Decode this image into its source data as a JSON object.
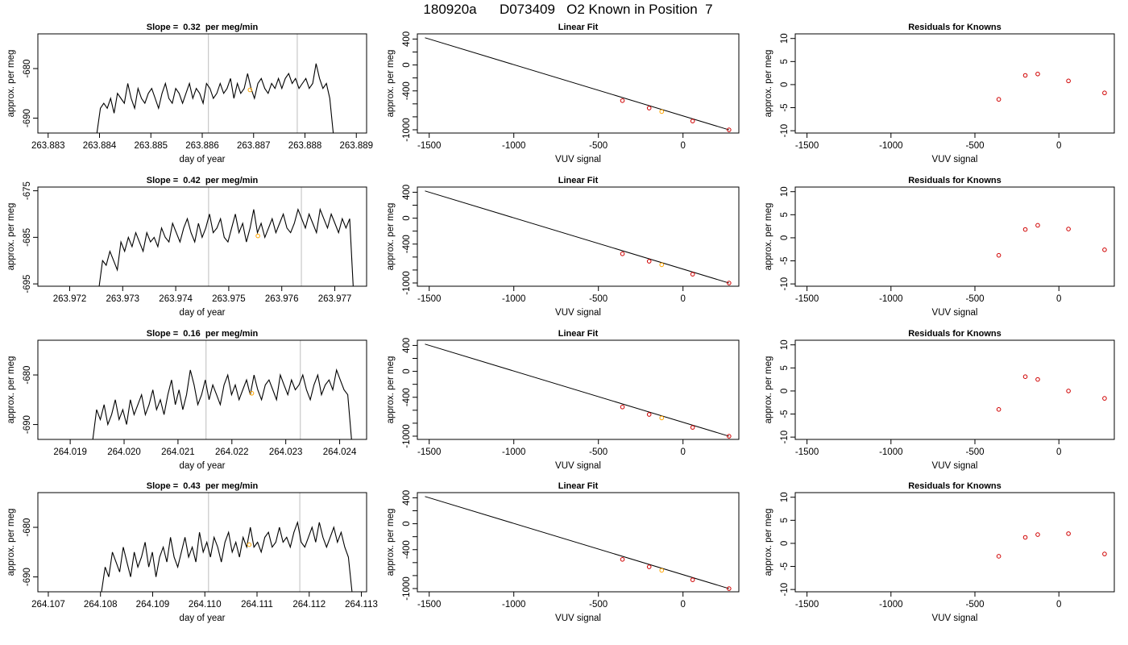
{
  "page_title": "180920a      D073409   O2 Known in Position  7",
  "chart_data": [
    {
      "type": "line",
      "panel": "timeseries",
      "row": 0,
      "title": "Slope =  0.32  per meg/min",
      "xlabel": "day of year",
      "ylabel": "approx. per meg",
      "xlim": [
        263.8828,
        263.8892
      ],
      "ylim": [
        -693,
        -673
      ],
      "xticks": [
        263.883,
        263.884,
        263.885,
        263.886,
        263.887,
        263.888,
        263.889
      ],
      "xtick_labels": [
        "263.883",
        "263.884",
        "263.885",
        "263.886",
        "263.887",
        "263.888",
        "263.889"
      ],
      "yticks": [
        -690,
        -680
      ],
      "ytick_labels": [
        "-690",
        "-680"
      ],
      "vlines": [
        263.88612,
        263.88785
      ],
      "series": [
        {
          "x_start": 263.88395,
          "x_end": 263.88855,
          "values": [
            -693,
            -688,
            -687,
            -688,
            -686,
            -689,
            -685,
            -686,
            -687,
            -683,
            -686,
            -688,
            -684,
            -686,
            -687,
            -685,
            -684,
            -686,
            -688,
            -685,
            -683,
            -686,
            -687,
            -684,
            -685,
            -687,
            -685,
            -683,
            -686,
            -684,
            -685,
            -687,
            -683,
            -684,
            -686,
            -685,
            -683,
            -685,
            -684,
            -682,
            -686,
            -683,
            -685,
            -684,
            -681,
            -684,
            -686,
            -683,
            -682,
            -684,
            -685,
            -683,
            -684,
            -682,
            -684,
            -682,
            -681,
            -683,
            -682,
            -684,
            -683,
            -682,
            -684,
            -683,
            -679,
            -682,
            -684,
            -683,
            -686,
            -693
          ]
        }
      ],
      "marker": {
        "x": 263.88693,
        "y": -684.3,
        "color": "#ffa500"
      }
    },
    {
      "type": "line",
      "panel": "fit",
      "row": 0,
      "title": "Linear Fit",
      "xlabel": "VUV signal",
      "ylabel": "approx. per meg",
      "xlim": [
        -1570,
        330
      ],
      "ylim": [
        -1050,
        480
      ],
      "xticks": [
        -1500,
        -1000,
        -500,
        0
      ],
      "xtick_labels": [
        "-1500",
        "-1000",
        "-500",
        "0"
      ],
      "yticks": [
        -1000,
        -800,
        -600,
        -400,
        -200,
        0,
        200,
        400
      ],
      "ytick_labels": [
        "-1000",
        "",
        "",
        "-400",
        "",
        "0",
        "",
        "400"
      ],
      "line": [
        [
          -1525,
          420
        ],
        [
          272,
          -1001
        ]
      ],
      "points": [
        {
          "x": -358,
          "y": -550
        },
        {
          "x": -200,
          "y": -665
        },
        {
          "x": -126,
          "y": -719,
          "color": "#ffa500"
        },
        {
          "x": 57,
          "y": -865
        },
        {
          "x": 272,
          "y": -1001
        }
      ]
    },
    {
      "type": "scatter",
      "panel": "residuals",
      "row": 0,
      "title": "Residuals for Knowns",
      "xlabel": "VUV signal",
      "ylabel": "approx. per meg",
      "xlim": [
        -1570,
        330
      ],
      "ylim": [
        -10.5,
        11
      ],
      "xticks": [
        -1500,
        -1000,
        -500,
        0
      ],
      "xtick_labels": [
        "-1500",
        "-1000",
        "-500",
        "0"
      ],
      "yticks": [
        -10,
        -5,
        0,
        5,
        10
      ],
      "ytick_labels": [
        "-10",
        "-5",
        "0",
        "5",
        "10"
      ],
      "points": [
        {
          "x": -358,
          "y": -3.2
        },
        {
          "x": -200,
          "y": 2.0
        },
        {
          "x": -126,
          "y": 2.3
        },
        {
          "x": 57,
          "y": 0.8
        },
        {
          "x": 272,
          "y": -1.8
        }
      ]
    },
    {
      "type": "line",
      "panel": "timeseries",
      "row": 1,
      "title": "Slope =  0.42  per meg/min",
      "xlabel": "day of year",
      "ylabel": "approx. per meg",
      "xlim": [
        263.9714,
        263.9776
      ],
      "ylim": [
        -695.5,
        -674.2
      ],
      "xticks": [
        263.972,
        263.973,
        263.974,
        263.975,
        263.976,
        263.977
      ],
      "xtick_labels": [
        "263.972",
        "263.973",
        "263.974",
        "263.975",
        "263.976",
        "263.977"
      ],
      "yticks": [
        -695,
        -685,
        -675
      ],
      "ytick_labels": [
        "-695",
        "-685",
        "-675"
      ],
      "vlines": [
        263.97462,
        263.97637
      ],
      "series": [
        {
          "x_start": 263.97255,
          "x_end": 263.97735,
          "values": [
            -696,
            -690,
            -691,
            -688,
            -690,
            -692,
            -686,
            -688,
            -685,
            -687,
            -684,
            -686,
            -688,
            -684,
            -686,
            -685,
            -687,
            -683,
            -685,
            -686,
            -682,
            -684,
            -686,
            -683,
            -681,
            -684,
            -686,
            -682,
            -685,
            -683,
            -680,
            -684,
            -683,
            -681,
            -685,
            -686,
            -683,
            -680,
            -684,
            -682,
            -686,
            -683,
            -679,
            -684,
            -682,
            -685,
            -683,
            -681,
            -684,
            -682,
            -680,
            -683,
            -684,
            -682,
            -679,
            -681,
            -683,
            -680,
            -682,
            -684,
            -679,
            -681,
            -683,
            -680,
            -682,
            -684,
            -681,
            -683,
            -681,
            -696
          ]
        }
      ],
      "marker": {
        "x": 263.97555,
        "y": -684.7,
        "color": "#ffa500"
      }
    },
    {
      "type": "line",
      "panel": "fit",
      "row": 1,
      "title": "Linear Fit",
      "xlabel": "VUV signal",
      "ylabel": "approx. per meg",
      "xlim": [
        -1570,
        330
      ],
      "ylim": [
        -1050,
        480
      ],
      "xticks": [
        -1500,
        -1000,
        -500,
        0
      ],
      "xtick_labels": [
        "-1500",
        "-1000",
        "-500",
        "0"
      ],
      "yticks": [
        -1000,
        -800,
        -600,
        -400,
        -200,
        0,
        200,
        400
      ],
      "ytick_labels": [
        "-1000",
        "",
        "",
        "-400",
        "",
        "0",
        "",
        "400"
      ],
      "line": [
        [
          -1525,
          420
        ],
        [
          272,
          -1001
        ]
      ],
      "points": [
        {
          "x": -358,
          "y": -550
        },
        {
          "x": -200,
          "y": -665
        },
        {
          "x": -126,
          "y": -719,
          "color": "#ffa500"
        },
        {
          "x": 57,
          "y": -865
        },
        {
          "x": 272,
          "y": -1001
        }
      ]
    },
    {
      "type": "scatter",
      "panel": "residuals",
      "row": 1,
      "title": "Residuals for Knowns",
      "xlabel": "VUV signal",
      "ylabel": "approx. per meg",
      "xlim": [
        -1570,
        330
      ],
      "ylim": [
        -10.5,
        11
      ],
      "xticks": [
        -1500,
        -1000,
        -500,
        0
      ],
      "xtick_labels": [
        "-1500",
        "-1000",
        "-500",
        "0"
      ],
      "yticks": [
        -10,
        -5,
        0,
        5,
        10
      ],
      "ytick_labels": [
        "-10",
        "-5",
        "0",
        "5",
        "10"
      ],
      "points": [
        {
          "x": -358,
          "y": -3.8
        },
        {
          "x": -200,
          "y": 1.8
        },
        {
          "x": -126,
          "y": 2.7
        },
        {
          "x": 57,
          "y": 1.9
        },
        {
          "x": 272,
          "y": -2.6
        }
      ]
    },
    {
      "type": "line",
      "panel": "timeseries",
      "row": 2,
      "title": "Slope =  0.16  per meg/min",
      "xlabel": "day of year",
      "ylabel": "approx. per meg",
      "xlim": [
        264.0184,
        264.0245
      ],
      "ylim": [
        -693,
        -673
      ],
      "xticks": [
        264.019,
        264.02,
        264.021,
        264.022,
        264.023,
        264.024
      ],
      "xtick_labels": [
        "264.019",
        "264.020",
        "264.021",
        "264.022",
        "264.023",
        "264.024"
      ],
      "yticks": [
        -690,
        -680
      ],
      "ytick_labels": [
        "-690",
        "-680"
      ],
      "vlines": [
        264.02152,
        264.02327
      ],
      "series": [
        {
          "x_start": 264.01942,
          "x_end": 264.02422,
          "values": [
            -693,
            -687,
            -689,
            -686,
            -690,
            -688,
            -685,
            -689,
            -687,
            -690,
            -685,
            -688,
            -686,
            -684,
            -688,
            -686,
            -683,
            -687,
            -685,
            -688,
            -684,
            -681,
            -686,
            -683,
            -687,
            -684,
            -679,
            -682,
            -686,
            -684,
            -681,
            -685,
            -682,
            -684,
            -686,
            -682,
            -680,
            -684,
            -682,
            -685,
            -683,
            -681,
            -684,
            -680,
            -683,
            -685,
            -682,
            -681,
            -683,
            -685,
            -680,
            -682,
            -684,
            -681,
            -683,
            -682,
            -680,
            -683,
            -685,
            -682,
            -680,
            -684,
            -682,
            -681,
            -683,
            -679,
            -681,
            -683,
            -684,
            -693
          ]
        }
      ],
      "marker": {
        "x": 264.02237,
        "y": -683.7,
        "color": "#ffa500"
      }
    },
    {
      "type": "line",
      "panel": "fit",
      "row": 2,
      "title": "Linear Fit",
      "xlabel": "VUV signal",
      "ylabel": "approx. per meg",
      "xlim": [
        -1570,
        330
      ],
      "ylim": [
        -1050,
        480
      ],
      "xticks": [
        -1500,
        -1000,
        -500,
        0
      ],
      "xtick_labels": [
        "-1500",
        "-1000",
        "-500",
        "0"
      ],
      "yticks": [
        -1000,
        -800,
        -600,
        -400,
        -200,
        0,
        200,
        400
      ],
      "ytick_labels": [
        "-1000",
        "",
        "",
        "-400",
        "",
        "0",
        "",
        "400"
      ],
      "line": [
        [
          -1525,
          420
        ],
        [
          272,
          -1001
        ]
      ],
      "points": [
        {
          "x": -358,
          "y": -550
        },
        {
          "x": -200,
          "y": -665
        },
        {
          "x": -126,
          "y": -719,
          "color": "#ffa500"
        },
        {
          "x": 57,
          "y": -865
        },
        {
          "x": 272,
          "y": -1001
        }
      ]
    },
    {
      "type": "scatter",
      "panel": "residuals",
      "row": 2,
      "title": "Residuals for Knowns",
      "xlabel": "VUV signal",
      "ylabel": "approx. per meg",
      "xlim": [
        -1570,
        330
      ],
      "ylim": [
        -10.5,
        11
      ],
      "xticks": [
        -1500,
        -1000,
        -500,
        0
      ],
      "xtick_labels": [
        "-1500",
        "-1000",
        "-500",
        "0"
      ],
      "yticks": [
        -10,
        -5,
        0,
        5,
        10
      ],
      "ytick_labels": [
        "-10",
        "-5",
        "0",
        "5",
        "10"
      ],
      "points": [
        {
          "x": -358,
          "y": -4.0
        },
        {
          "x": -200,
          "y": 3.1
        },
        {
          "x": -126,
          "y": 2.5
        },
        {
          "x": 57,
          "y": 0.0
        },
        {
          "x": 272,
          "y": -1.6
        }
      ]
    },
    {
      "type": "line",
      "panel": "timeseries",
      "row": 3,
      "title": "Slope =  0.43  per meg/min",
      "xlabel": "day of year",
      "ylabel": "approx. per meg",
      "xlim": [
        264.1068,
        264.1131
      ],
      "ylim": [
        -693,
        -673
      ],
      "xticks": [
        264.107,
        264.108,
        264.109,
        264.11,
        264.111,
        264.112,
        264.113
      ],
      "xtick_labels": [
        "264.107",
        "264.108",
        "264.109",
        "264.110",
        "264.111",
        "264.112",
        "264.113"
      ],
      "yticks": [
        -690,
        -680
      ],
      "ytick_labels": [
        "-690",
        "-680"
      ],
      "vlines": [
        264.11007,
        264.11182
      ],
      "series": [
        {
          "x_start": 264.10802,
          "x_end": 264.11282,
          "values": [
            -693,
            -688,
            -690,
            -685,
            -687,
            -689,
            -684,
            -687,
            -690,
            -685,
            -688,
            -686,
            -683,
            -688,
            -685,
            -690,
            -686,
            -684,
            -687,
            -682,
            -686,
            -688,
            -685,
            -682,
            -686,
            -684,
            -687,
            -681,
            -685,
            -683,
            -686,
            -682,
            -684,
            -687,
            -683,
            -681,
            -685,
            -683,
            -686,
            -682,
            -684,
            -680,
            -684,
            -683,
            -685,
            -682,
            -681,
            -684,
            -683,
            -680,
            -683,
            -682,
            -684,
            -681,
            -679,
            -683,
            -684,
            -682,
            -680,
            -683,
            -679,
            -682,
            -684,
            -682,
            -680,
            -683,
            -681,
            -684,
            -686,
            -693
          ]
        }
      ],
      "marker": {
        "x": 264.11085,
        "y": -683.5,
        "color": "#ffa500"
      }
    },
    {
      "type": "line",
      "panel": "fit",
      "row": 3,
      "title": "Linear Fit",
      "xlabel": "VUV signal",
      "ylabel": "approx. per meg",
      "xlim": [
        -1570,
        330
      ],
      "ylim": [
        -1050,
        480
      ],
      "xticks": [
        -1500,
        -1000,
        -500,
        0
      ],
      "xtick_labels": [
        "-1500",
        "-1000",
        "-500",
        "0"
      ],
      "yticks": [
        -1000,
        -800,
        -600,
        -400,
        -200,
        0,
        200,
        400
      ],
      "ytick_labels": [
        "-1000",
        "",
        "",
        "-400",
        "",
        "0",
        "",
        "400"
      ],
      "line": [
        [
          -1525,
          420
        ],
        [
          272,
          -1001
        ]
      ],
      "points": [
        {
          "x": -358,
          "y": -550
        },
        {
          "x": -200,
          "y": -665
        },
        {
          "x": -126,
          "y": -719,
          "color": "#ffa500"
        },
        {
          "x": 57,
          "y": -865
        },
        {
          "x": 272,
          "y": -1001
        }
      ]
    },
    {
      "type": "scatter",
      "panel": "residuals",
      "row": 3,
      "title": "Residuals for Knowns",
      "xlabel": "VUV signal",
      "ylabel": "approx. per meg",
      "xlim": [
        -1570,
        330
      ],
      "ylim": [
        -10.5,
        11
      ],
      "xticks": [
        -1500,
        -1000,
        -500,
        0
      ],
      "xtick_labels": [
        "-1500",
        "-1000",
        "-500",
        "0"
      ],
      "yticks": [
        -10,
        -5,
        0,
        5,
        10
      ],
      "ytick_labels": [
        "-10",
        "-5",
        "0",
        "5",
        "10"
      ],
      "points": [
        {
          "x": -358,
          "y": -2.8
        },
        {
          "x": -200,
          "y": 1.3
        },
        {
          "x": -126,
          "y": 1.9
        },
        {
          "x": 57,
          "y": 2.1
        },
        {
          "x": 272,
          "y": -2.3
        }
      ]
    }
  ],
  "colors": {
    "line": "#000000",
    "vline": "#c8c8c8",
    "point": "#d00000",
    "highlight": "#ffa500"
  }
}
